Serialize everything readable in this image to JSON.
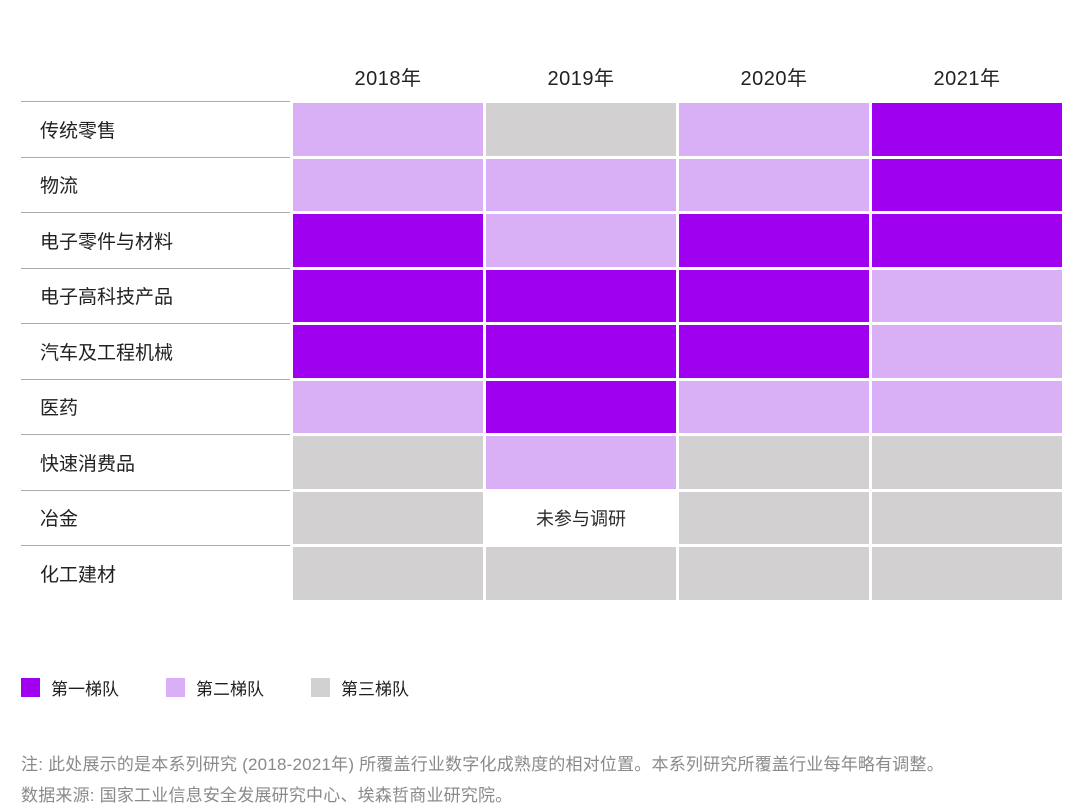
{
  "chart_data": {
    "type": "heatmap",
    "title": "",
    "x": [
      "2018年",
      "2019年",
      "2020年",
      "2021年"
    ],
    "categories": [
      "传统零售",
      "物流",
      "电子零件与材料",
      "电子高科技产品",
      "汽车及工程机械",
      "医药",
      "快速消费品",
      "冶金",
      "化工建材"
    ],
    "rows": [
      {
        "industry": "传统零售",
        "tiers": [
          "tier2",
          "tier3",
          "tier2",
          "tier1"
        ]
      },
      {
        "industry": "物流",
        "tiers": [
          "tier2",
          "tier2",
          "tier2",
          "tier1"
        ]
      },
      {
        "industry": "电子零件与材料",
        "tiers": [
          "tier1",
          "tier2",
          "tier1",
          "tier1"
        ]
      },
      {
        "industry": "电子高科技产品",
        "tiers": [
          "tier1",
          "tier1",
          "tier1",
          "tier2"
        ]
      },
      {
        "industry": "汽车及工程机械",
        "tiers": [
          "tier1",
          "tier1",
          "tier1",
          "tier2"
        ]
      },
      {
        "industry": "医药",
        "tiers": [
          "tier2",
          "tier1",
          "tier2",
          "tier2"
        ]
      },
      {
        "industry": "快速消费品",
        "tiers": [
          "tier3",
          "tier2",
          "tier3",
          "tier3"
        ]
      },
      {
        "industry": "冶金",
        "tiers": [
          "tier3",
          "none",
          "tier3",
          "tier3"
        ]
      },
      {
        "industry": "化工建材",
        "tiers": [
          "tier3",
          "tier3",
          "tier3",
          "tier3"
        ]
      }
    ],
    "not_surveyed_label": "未参与调研",
    "tier_colors": {
      "tier1": "#A000F0",
      "tier2": "#D9AFF5",
      "tier3": "#D2D0D0",
      "none": "#FFFFFF"
    },
    "legend": [
      {
        "label": "第一梯队",
        "color": "#A000F0"
      },
      {
        "label": "第二梯队",
        "color": "#D9AFF5"
      },
      {
        "label": "第三梯队",
        "color": "#D2D0D0"
      }
    ],
    "legend_position": "bottom-left",
    "grid": false
  },
  "notes": {
    "note": "注: 此处展示的是本系列研究 (2018-2021年) 所覆盖行业数字化成熟度的相对位置。本系列研究所覆盖行业每年略有调整。",
    "source": "数据来源: 国家工业信息安全发展研究中心、埃森哲商业研究院。"
  }
}
